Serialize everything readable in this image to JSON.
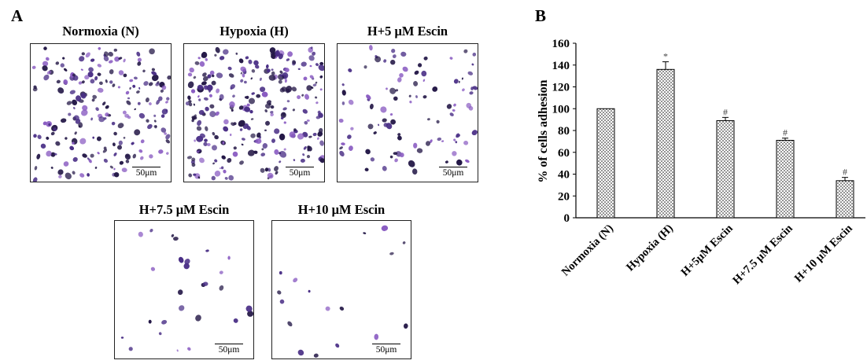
{
  "panel_a": {
    "label": "A",
    "images": [
      {
        "title": "Normoxia (N)",
        "scale": "50μm",
        "cells": 210
      },
      {
        "title": "Hypoxia (H)",
        "scale": "50μm",
        "cells": 290
      },
      {
        "title": "H+5 μM Escin",
        "scale": "50μm",
        "cells": 105
      },
      {
        "title": "H+7.5 μM Escin",
        "scale": "50μm",
        "cells": 30
      },
      {
        "title": "H+10 μM Escin",
        "scale": "50μm",
        "cells": 18
      }
    ]
  },
  "panel_b": {
    "label": "B"
  },
  "colors": {
    "cell_dark": "#241847",
    "cell_mid": "#4a2f86",
    "cell_light": "#8a5cc2",
    "bar_fill": "#ffffff",
    "bar_dots": "#000000"
  },
  "chart_data": {
    "type": "bar",
    "title": "",
    "categories": [
      "Normoxia (N)",
      "Hypoxia (H)",
      "H+5μM Escin",
      "H+7.5 μM Escin",
      "H+10 μM Escin"
    ],
    "values": [
      100,
      136,
      89,
      71,
      34
    ],
    "errors": [
      0,
      7,
      3,
      2,
      3
    ],
    "annotations": [
      "",
      "*",
      "#",
      "#",
      "#"
    ],
    "xlabel": "",
    "ylabel": "% of cells adhesion",
    "ylim": [
      0,
      160
    ],
    "yticks": [
      0,
      20,
      40,
      60,
      80,
      100,
      120,
      140,
      160
    ],
    "grid": false,
    "legend": "none"
  }
}
